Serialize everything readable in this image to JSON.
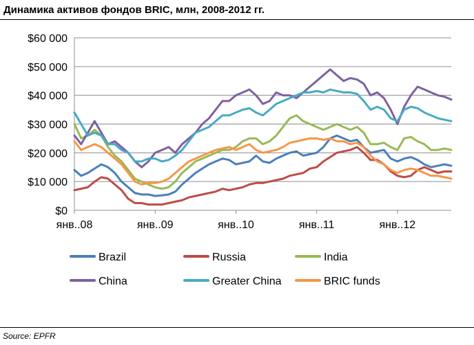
{
  "header": {
    "title": "Динамика активов фондов BRIC, млн, 2008-2012 гг."
  },
  "footer": {
    "source": "Source: EPFR"
  },
  "chart_data": {
    "type": "line",
    "title": "Динамика активов фондов BRIC, млн, 2008-2012 гг.",
    "xlabel": "",
    "ylabel": "",
    "x_range": [
      "2008-01",
      "2012-09"
    ],
    "x_ticks": [
      "янв..08",
      "янв..09",
      "янв..10",
      "янв..11",
      "янв..12"
    ],
    "x_tick_positions": [
      "2008-01",
      "2009-01",
      "2010-01",
      "2011-01",
      "2012-01"
    ],
    "ylim": [
      0,
      60000
    ],
    "y_ticks": [
      0,
      10000,
      20000,
      30000,
      40000,
      50000,
      60000
    ],
    "y_tick_labels": [
      "$0",
      "$10 000",
      "$20 000",
      "$30 000",
      "$40 000",
      "$50 000",
      "$60 000"
    ],
    "grid": "horizontal",
    "legend_position": "bottom",
    "x": [
      "2008-01",
      "2008-02",
      "2008-03",
      "2008-04",
      "2008-05",
      "2008-06",
      "2008-07",
      "2008-08",
      "2008-09",
      "2008-10",
      "2008-11",
      "2008-12",
      "2009-01",
      "2009-02",
      "2009-03",
      "2009-04",
      "2009-05",
      "2009-06",
      "2009-07",
      "2009-08",
      "2009-09",
      "2009-10",
      "2009-11",
      "2009-12",
      "2010-01",
      "2010-02",
      "2010-03",
      "2010-04",
      "2010-05",
      "2010-06",
      "2010-07",
      "2010-08",
      "2010-09",
      "2010-10",
      "2010-11",
      "2010-12",
      "2011-01",
      "2011-02",
      "2011-03",
      "2011-04",
      "2011-05",
      "2011-06",
      "2011-07",
      "2011-08",
      "2011-09",
      "2011-10",
      "2011-11",
      "2011-12",
      "2012-01",
      "2012-02",
      "2012-03",
      "2012-04",
      "2012-05",
      "2012-06",
      "2012-07",
      "2012-08",
      "2012-09"
    ],
    "series": [
      {
        "name": "Brazil",
        "color": "#4a7ebb",
        "values": [
          14000,
          12000,
          13000,
          14500,
          16000,
          15000,
          13000,
          10000,
          8000,
          6000,
          5500,
          5500,
          5000,
          5200,
          5500,
          6500,
          9000,
          11000,
          13000,
          14500,
          16000,
          17000,
          18000,
          17500,
          16000,
          16500,
          17000,
          19000,
          17000,
          16500,
          18000,
          19000,
          20000,
          20500,
          19000,
          19500,
          20000,
          22000,
          25000,
          26000,
          25000,
          24000,
          24500,
          22000,
          20000,
          20500,
          21000,
          18000,
          17000,
          18000,
          18500,
          17500,
          16000,
          15000,
          15500,
          16000,
          15500
        ]
      },
      {
        "name": "Russia",
        "color": "#be4b48",
        "values": [
          7000,
          7500,
          8000,
          10000,
          11500,
          11000,
          9000,
          7000,
          4000,
          2500,
          2500,
          2000,
          2000,
          2000,
          2500,
          3000,
          3500,
          4500,
          5000,
          5500,
          6000,
          6500,
          7500,
          7000,
          7500,
          8000,
          9000,
          9500,
          9500,
          10000,
          10500,
          11000,
          12000,
          12500,
          13000,
          14500,
          15000,
          17000,
          18500,
          20000,
          20500,
          21000,
          22000,
          20000,
          17500,
          17500,
          16000,
          13500,
          12000,
          11500,
          12000,
          14000,
          15000,
          14000,
          13000,
          13500,
          13500
        ]
      },
      {
        "name": "India",
        "color": "#98b954",
        "values": [
          30000,
          25000,
          26000,
          28000,
          26000,
          22000,
          19000,
          17000,
          14000,
          11000,
          10000,
          9000,
          8000,
          7500,
          8000,
          10000,
          13000,
          15000,
          17000,
          18000,
          19000,
          20000,
          21000,
          21000,
          22000,
          24000,
          25000,
          25000,
          23000,
          24000,
          26000,
          29000,
          32000,
          33000,
          31000,
          30000,
          29000,
          28000,
          29000,
          30000,
          29000,
          28000,
          29000,
          27000,
          23000,
          23000,
          23500,
          22000,
          21000,
          25000,
          25500,
          24000,
          23000,
          21000,
          21000,
          21500,
          21000
        ]
      },
      {
        "name": "China",
        "color": "#7d60a0",
        "values": [
          26000,
          23000,
          27000,
          31000,
          27000,
          23000,
          24000,
          22000,
          20000,
          17000,
          15000,
          17000,
          20000,
          21000,
          22000,
          20000,
          23000,
          25000,
          27000,
          30000,
          32000,
          35000,
          38000,
          38000,
          40000,
          41000,
          42000,
          40000,
          37000,
          38000,
          41000,
          40000,
          40000,
          39000,
          41000,
          43000,
          45000,
          47000,
          49000,
          47000,
          45000,
          46000,
          45500,
          44000,
          40000,
          41000,
          39000,
          35000,
          30000,
          36000,
          40000,
          43000,
          42000,
          41000,
          40000,
          39500,
          38500
        ]
      },
      {
        "name": "Greater China",
        "color": "#46aac5",
        "values": [
          34000,
          30000,
          26000,
          27000,
          26000,
          23000,
          23000,
          21000,
          20000,
          17000,
          17000,
          18000,
          18000,
          17000,
          17500,
          19000,
          21000,
          24000,
          27000,
          28000,
          29000,
          31000,
          33000,
          33000,
          34000,
          35000,
          35500,
          34000,
          33000,
          35000,
          37000,
          38000,
          39000,
          40000,
          41000,
          41000,
          41500,
          41000,
          42000,
          41500,
          41000,
          41000,
          40500,
          38000,
          35000,
          36000,
          35000,
          32000,
          31000,
          35000,
          36000,
          35500,
          34000,
          33000,
          32000,
          31500,
          31000
        ]
      },
      {
        "name": "BRIC funds",
        "color": "#f79646",
        "values": [
          24000,
          21000,
          22000,
          23000,
          22000,
          20000,
          18000,
          16000,
          13000,
          10000,
          9000,
          9500,
          9500,
          10000,
          11000,
          13000,
          15000,
          17000,
          18000,
          19000,
          20000,
          21000,
          21500,
          22000,
          21000,
          22000,
          23000,
          21000,
          20000,
          20500,
          21000,
          22000,
          23500,
          24000,
          24500,
          25000,
          25000,
          24500,
          25000,
          24000,
          24000,
          23000,
          23500,
          22000,
          19000,
          17000,
          16000,
          14000,
          13000,
          14000,
          14500,
          14000,
          13000,
          12000,
          12000,
          11500,
          11000
        ]
      }
    ]
  }
}
